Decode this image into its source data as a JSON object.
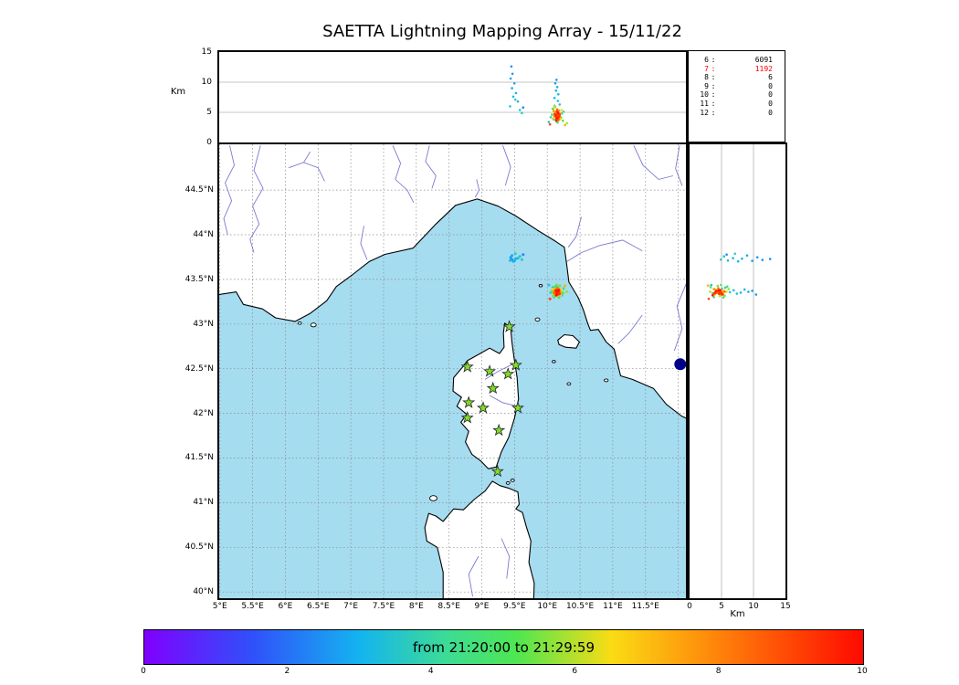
{
  "colors": {
    "sea": "#a5dcf0",
    "land": "#ffffff",
    "river": "#7a7ad2",
    "grid": "#8a8a8a",
    "star": "#7fdd28",
    "star_edge": "#222222",
    "highlight": "#ff0000",
    "marker_dot": "#00008b"
  },
  "chart_data": {
    "type": "scatter",
    "title": "SAETTA Lightning Mapping Array - 15/11/22",
    "panels": {
      "alt_lon": {
        "ylabel": "Km",
        "ylim": [
          0,
          15
        ],
        "ytick_vals": [
          0,
          5,
          10,
          15
        ],
        "ytick_labels": [
          "0",
          "5",
          "10",
          "15"
        ],
        "grid": [
          5,
          10
        ]
      },
      "map": {
        "lon_range": [
          4.99,
          12.12
        ],
        "lat_range": [
          39.93,
          45.01
        ],
        "lon_tick_vals": [
          5,
          5.5,
          6,
          6.5,
          7,
          7.5,
          8,
          8.5,
          9,
          9.5,
          10,
          10.5,
          11,
          11.5
        ],
        "lon_tick_labels": [
          "5°E",
          "5.5°E",
          "6°E",
          "6.5°E",
          "7°E",
          "7.5°E",
          "8°E",
          "8.5°E",
          "9°E",
          "9.5°E",
          "10°E",
          "10.5°E",
          "11°E",
          "11.5°E"
        ],
        "lat_tick_vals": [
          40,
          40.5,
          41,
          41.5,
          42,
          42.5,
          43,
          43.5,
          44,
          44.5
        ],
        "lat_tick_labels": [
          "40°N",
          "40.5°N",
          "41°N",
          "41.5°N",
          "42°N",
          "42.5°N",
          "43°N",
          "43.5°N",
          "44°N",
          "44.5°N"
        ],
        "grid_step_deg": 0.5
      },
      "alt_lat": {
        "xlabel": "Km",
        "xlim": [
          0,
          15
        ],
        "xtick_vals": [
          0,
          5,
          10,
          15
        ],
        "xtick_labels": [
          "0",
          "5",
          "10",
          "15"
        ],
        "grid": [
          5,
          10
        ]
      }
    },
    "station_source_counts": {
      "rows": [
        {
          "level": "6",
          "count": "6091",
          "highlight": false
        },
        {
          "level": "7",
          "count": "1192",
          "highlight": true
        },
        {
          "level": "8",
          "count": "6",
          "highlight": false
        },
        {
          "level": "9",
          "count": "0",
          "highlight": false
        },
        {
          "level": "10",
          "count": "0",
          "highlight": false
        },
        {
          "level": "11",
          "count": "0",
          "highlight": false
        },
        {
          "level": "12",
          "count": "0",
          "highlight": false
        }
      ]
    },
    "colorbar": {
      "label": "from 21:20:00 to 21:29:59",
      "tmin": 0,
      "tmax": 10,
      "tick_vals": [
        0,
        2,
        4,
        6,
        8,
        10
      ],
      "tick_labels": [
        "0",
        "2",
        "4",
        "6",
        "8",
        "10"
      ],
      "stops": [
        [
          0,
          "#8000ff"
        ],
        [
          0.15,
          "#3050fa"
        ],
        [
          0.3,
          "#14b4f0"
        ],
        [
          0.42,
          "#3cdc96"
        ],
        [
          0.52,
          "#50e650"
        ],
        [
          0.65,
          "#fadc14"
        ],
        [
          0.8,
          "#ff820a"
        ],
        [
          1,
          "#ff0a00"
        ]
      ]
    },
    "stations_lonlat": [
      [
        9.42,
        42.97
      ],
      [
        8.78,
        42.52
      ],
      [
        9.12,
        42.47
      ],
      [
        9.4,
        42.44
      ],
      [
        9.52,
        42.54
      ],
      [
        9.17,
        42.28
      ],
      [
        8.8,
        42.12
      ],
      [
        9.02,
        42.06
      ],
      [
        8.78,
        41.95
      ],
      [
        9.55,
        42.06
      ],
      [
        9.26,
        41.81
      ],
      [
        9.24,
        41.35
      ]
    ],
    "marker_dot": {
      "lon": 12.03,
      "lat": 42.55
    },
    "sources": [
      [
        10.123,
        43.372,
        9.8,
        2.7
      ],
      [
        10.152,
        43.361,
        9.2,
        2.9
      ],
      [
        10.134,
        43.388,
        8.6,
        3.0
      ],
      [
        10.168,
        43.352,
        8.0,
        3.1
      ],
      [
        10.112,
        43.341,
        7.4,
        3.2
      ],
      [
        10.161,
        43.379,
        6.9,
        3.3
      ],
      [
        10.189,
        43.357,
        6.3,
        3.5
      ],
      [
        10.141,
        43.331,
        10.4,
        2.6
      ],
      [
        10.082,
        43.408,
        5.6,
        3.6
      ],
      [
        10.221,
        43.322,
        4.8,
        3.8
      ],
      [
        10.052,
        43.351,
        4.2,
        4.0
      ],
      [
        10.248,
        43.398,
        5.1,
        4.1
      ],
      [
        10.101,
        43.302,
        3.8,
        3.9
      ],
      [
        10.023,
        43.437,
        3.4,
        3.4
      ],
      [
        10.118,
        43.421,
        5.9,
        4.7
      ],
      [
        10.178,
        43.298,
        5.3,
        4.9
      ],
      [
        10.071,
        43.368,
        4.6,
        5.0
      ],
      [
        10.212,
        43.372,
        4.1,
        5.2
      ],
      [
        10.143,
        43.438,
        4.9,
        5.3
      ],
      [
        10.092,
        43.318,
        5.5,
        5.5
      ],
      [
        10.238,
        43.348,
        3.6,
        5.1
      ],
      [
        10.158,
        43.412,
        3.3,
        4.8
      ],
      [
        10.111,
        43.392,
        6.1,
        5.6
      ],
      [
        10.192,
        43.428,
        4.4,
        5.4
      ],
      [
        10.298,
        43.362,
        3.2,
        5.8
      ],
      [
        10.132,
        43.352,
        5.0,
        6.1
      ],
      [
        10.172,
        43.388,
        4.5,
        6.3
      ],
      [
        10.102,
        43.362,
        5.8,
        6.4
      ],
      [
        10.202,
        43.328,
        3.9,
        6.6
      ],
      [
        10.148,
        43.312,
        4.7,
        6.2
      ],
      [
        10.081,
        43.392,
        4.0,
        6.7
      ],
      [
        10.222,
        43.378,
        5.4,
        6.5
      ],
      [
        10.142,
        43.358,
        4.8,
        7.1
      ],
      [
        10.158,
        43.352,
        4.4,
        7.2
      ],
      [
        10.131,
        43.368,
        5.1,
        7.3
      ],
      [
        10.171,
        43.371,
        4.6,
        7.4
      ],
      [
        10.152,
        43.381,
        4.2,
        7.5
      ],
      [
        10.121,
        43.348,
        4.9,
        7.6
      ],
      [
        10.181,
        43.362,
        5.3,
        7.7
      ],
      [
        10.139,
        43.338,
        4.0,
        7.8
      ],
      [
        10.162,
        43.384,
        4.6,
        7.9
      ],
      [
        10.128,
        43.328,
        5.0,
        8.0
      ],
      [
        10.191,
        43.352,
        4.3,
        8.1
      ],
      [
        10.109,
        43.372,
        4.7,
        8.2
      ],
      [
        10.151,
        43.363,
        5.5,
        8.3
      ],
      [
        10.169,
        43.332,
        3.7,
        8.4
      ],
      [
        10.118,
        43.382,
        4.1,
        7.0
      ],
      [
        10.201,
        43.368,
        4.8,
        7.3
      ],
      [
        10.099,
        43.342,
        5.2,
        7.5
      ],
      [
        10.179,
        43.392,
        3.8,
        7.9
      ],
      [
        10.149,
        43.402,
        4.5,
        8.2
      ],
      [
        10.271,
        43.431,
        2.9,
        7.2
      ],
      [
        10.042,
        43.282,
        3.0,
        8.9
      ],
      [
        10.148,
        43.352,
        4.6,
        8.7
      ],
      [
        10.139,
        43.372,
        4.2,
        8.8
      ],
      [
        10.158,
        43.358,
        4.9,
        8.9
      ],
      [
        10.129,
        43.362,
        4.4,
        9.0
      ],
      [
        10.168,
        43.348,
        4.0,
        9.1
      ],
      [
        10.151,
        43.332,
        5.2,
        9.2
      ],
      [
        10.119,
        43.358,
        4.7,
        9.3
      ],
      [
        10.178,
        43.368,
        4.3,
        9.4
      ],
      [
        10.141,
        43.348,
        3.9,
        9.5
      ],
      [
        10.161,
        43.342,
        5.0,
        9.6
      ],
      [
        10.132,
        43.378,
        4.5,
        9.7
      ],
      [
        10.149,
        43.368,
        4.1,
        9.8
      ],
      [
        10.171,
        43.381,
        4.8,
        9.9
      ],
      [
        10.138,
        43.322,
        3.6,
        9.9
      ],
      [
        10.108,
        43.352,
        4.4,
        8.6
      ],
      [
        10.188,
        43.338,
        4.6,
        9.2
      ],
      [
        9.452,
        43.728,
        12.6,
        2.5
      ],
      [
        9.468,
        43.718,
        11.4,
        2.6
      ],
      [
        9.441,
        43.748,
        10.6,
        2.7
      ],
      [
        9.498,
        43.708,
        9.8,
        2.8
      ],
      [
        9.462,
        43.768,
        9.0,
        2.9
      ],
      [
        9.521,
        43.732,
        8.2,
        3.0
      ],
      [
        9.481,
        43.702,
        7.6,
        3.1
      ],
      [
        9.551,
        43.738,
        6.8,
        3.2
      ],
      [
        9.432,
        43.712,
        6.0,
        3.3
      ],
      [
        9.582,
        43.758,
        5.4,
        3.5
      ],
      [
        9.612,
        43.722,
        4.9,
        3.6
      ],
      [
        9.632,
        43.778,
        5.8,
        2.4
      ],
      [
        9.512,
        43.788,
        7.1,
        3.7
      ]
    ]
  }
}
